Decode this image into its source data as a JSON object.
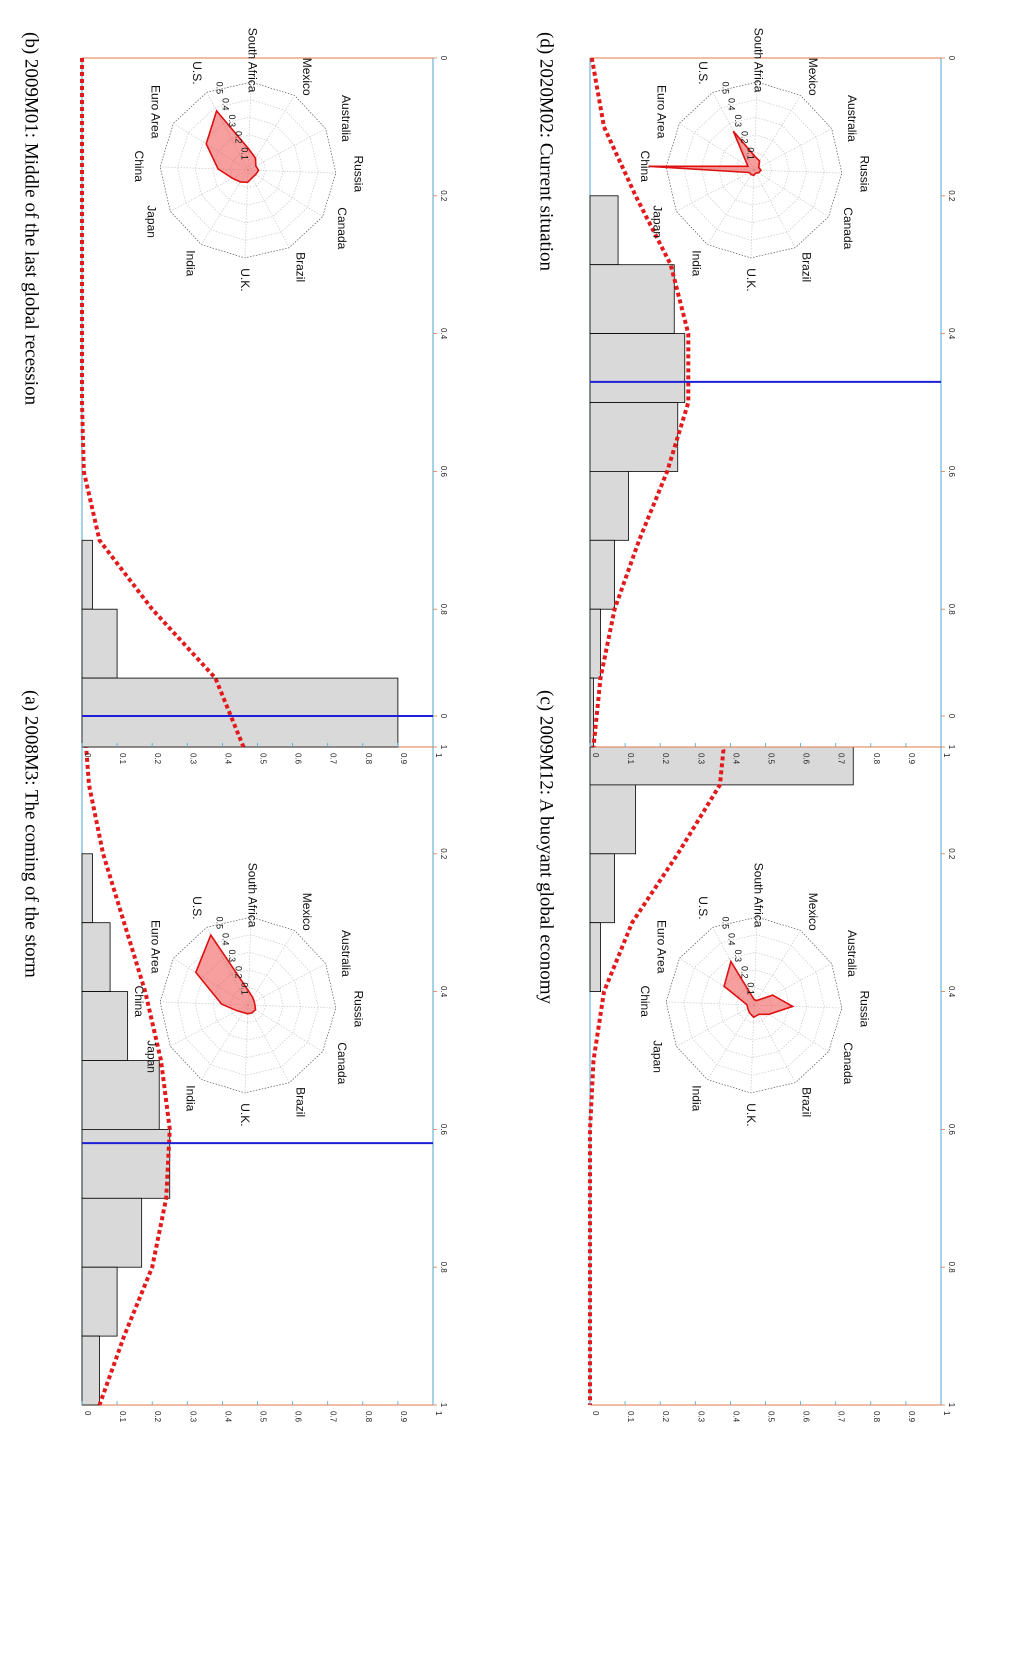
{
  "chart_data": [
    {
      "panel": "a",
      "title": "(a) 2008M3: The coming of the storm",
      "histogram": {
        "type": "bar",
        "xlim": [
          0,
          1
        ],
        "ylim": [
          0,
          1
        ],
        "xticks": [
          "0",
          "0.2",
          "0.4",
          "0.6",
          "0.8",
          "1"
        ],
        "yticks": [
          "0",
          "0.1",
          "0.2",
          "0.3",
          "0.4",
          "0.5",
          "0.6",
          "0.7",
          "0.8",
          "0.9",
          "1"
        ],
        "bins": [
          [
            0.2,
            0.3,
            0.03
          ],
          [
            0.3,
            0.4,
            0.08
          ],
          [
            0.4,
            0.5,
            0.13
          ],
          [
            0.5,
            0.6,
            0.22
          ],
          [
            0.6,
            0.7,
            0.25
          ],
          [
            0.7,
            0.8,
            0.17
          ],
          [
            0.8,
            0.9,
            0.1
          ],
          [
            0.9,
            1.0,
            0.05
          ]
        ],
        "vline": 0.62,
        "density": [
          [
            0,
            0.005
          ],
          [
            0.1,
            0.02
          ],
          [
            0.2,
            0.06
          ],
          [
            0.3,
            0.12
          ],
          [
            0.4,
            0.18
          ],
          [
            0.5,
            0.225
          ],
          [
            0.6,
            0.25
          ],
          [
            0.7,
            0.24
          ],
          [
            0.8,
            0.2
          ],
          [
            0.9,
            0.12
          ],
          [
            1.0,
            0.05
          ]
        ]
      },
      "radar": {
        "type": "radar",
        "axes": [
          "U.S.",
          "South Africa",
          "Mexico",
          "Australia",
          "Russia",
          "Canada",
          "Brazil",
          "U.K.",
          "India",
          "Japan",
          "China",
          "Euro Area"
        ],
        "rings": [
          "0.1",
          "0.2",
          "0.3",
          "0.4",
          "0.5"
        ],
        "values": [
          0.45,
          0.08,
          0.05,
          0.04,
          0.04,
          0.05,
          0.05,
          0.05,
          0.05,
          0.07,
          0.15,
          0.35
        ]
      }
    },
    {
      "panel": "b",
      "title": "(b) 2009M01: Middle of the last global recession",
      "histogram": {
        "type": "bar",
        "xlim": [
          0,
          1
        ],
        "ylim": [
          0,
          1
        ],
        "xticks": [
          "0",
          "0.2",
          "0.4",
          "0.6",
          "0.8",
          "1"
        ],
        "yticks": [
          "0",
          "0.1",
          "0.2",
          "0.3",
          "0.4",
          "0.5",
          "0.6",
          "0.7",
          "0.8",
          "0.9",
          "1"
        ],
        "bins": [
          [
            0.7,
            0.8,
            0.03
          ],
          [
            0.8,
            0.9,
            0.1
          ],
          [
            0.9,
            1.0,
            0.9
          ]
        ],
        "vline": 0.955,
        "density": [
          [
            0,
            0
          ],
          [
            0.5,
            0
          ],
          [
            0.6,
            0.005
          ],
          [
            0.7,
            0.05
          ],
          [
            0.8,
            0.2
          ],
          [
            0.9,
            0.38
          ],
          [
            1.0,
            0.46
          ]
        ]
      },
      "radar": {
        "type": "radar",
        "axes": [
          "U.S.",
          "South Africa",
          "Mexico",
          "Australia",
          "Russia",
          "Canada",
          "Brazil",
          "U.K.",
          "India",
          "Japan",
          "China",
          "Euro Area"
        ],
        "rings": [
          "0.1",
          "0.2",
          "0.3",
          "0.4",
          "0.5"
        ],
        "values": [
          0.38,
          0.12,
          0.08,
          0.05,
          0.06,
          0.05,
          0.05,
          0.07,
          0.08,
          0.1,
          0.17,
          0.28
        ]
      }
    },
    {
      "panel": "c",
      "title": "(c) 2009M12: A buoyant global economy",
      "histogram": {
        "type": "bar",
        "xlim": [
          0,
          1
        ],
        "ylim": [
          0,
          1
        ],
        "xticks": [
          "0",
          "0.2",
          "0.4",
          "0.6",
          "0.8",
          "1"
        ],
        "yticks": [
          "0",
          "0.1",
          "0.2",
          "0.3",
          "0.4",
          "0.5",
          "0.6",
          "0.7",
          "0.8",
          "0.9",
          "1"
        ],
        "bins": [
          [
            0.0,
            0.1,
            0.75
          ],
          [
            0.1,
            0.2,
            0.13
          ],
          [
            0.2,
            0.3,
            0.07
          ],
          [
            0.3,
            0.4,
            0.03
          ]
        ],
        "vline": 0.04,
        "density": [
          [
            0,
            0.35
          ],
          [
            0.05,
            0.38
          ],
          [
            0.1,
            0.37
          ],
          [
            0.2,
            0.25
          ],
          [
            0.3,
            0.12
          ],
          [
            0.4,
            0.04
          ],
          [
            0.5,
            0.01
          ],
          [
            0.6,
            0.0
          ],
          [
            1.0,
            0.0
          ]
        ]
      },
      "radar": {
        "type": "radar",
        "axes": [
          "U.S.",
          "South Africa",
          "Mexico",
          "Australia",
          "Russia",
          "Canada",
          "Brazil",
          "U.K.",
          "India",
          "Japan",
          "China",
          "Euro Area"
        ],
        "rings": [
          "0.1",
          "0.2",
          "0.3",
          "0.4",
          "0.5"
        ],
        "values": [
          0.28,
          0.03,
          0.03,
          0.12,
          0.22,
          0.1,
          0.06,
          0.07,
          0.05,
          0.04,
          0.04,
          0.2
        ]
      }
    },
    {
      "panel": "d",
      "title": "(d) 2020M02: Current situation",
      "histogram": {
        "type": "bar",
        "xlim": [
          0,
          1
        ],
        "ylim": [
          0,
          1
        ],
        "xticks": [
          "0",
          "0.2",
          "0.4",
          "0.6",
          "0.8",
          "1"
        ],
        "yticks": [
          "0",
          "0.1",
          "0.2",
          "0.3",
          "0.4",
          "0.5",
          "0.6",
          "0.7",
          "0.8",
          "0.9",
          "1"
        ],
        "bins": [
          [
            0.2,
            0.3,
            0.08
          ],
          [
            0.3,
            0.4,
            0.24
          ],
          [
            0.4,
            0.5,
            0.27
          ],
          [
            0.5,
            0.6,
            0.25
          ],
          [
            0.6,
            0.7,
            0.11
          ],
          [
            0.7,
            0.8,
            0.07
          ],
          [
            0.8,
            0.9,
            0.03
          ],
          [
            0.9,
            1.0,
            0.01
          ]
        ],
        "vline": 0.47,
        "density": [
          [
            0,
            0.005
          ],
          [
            0.1,
            0.04
          ],
          [
            0.2,
            0.13
          ],
          [
            0.3,
            0.23
          ],
          [
            0.4,
            0.28
          ],
          [
            0.5,
            0.28
          ],
          [
            0.6,
            0.22
          ],
          [
            0.7,
            0.14
          ],
          [
            0.8,
            0.07
          ],
          [
            0.9,
            0.03
          ],
          [
            1.0,
            0.01
          ]
        ]
      },
      "radar": {
        "type": "radar",
        "axes": [
          "U.S.",
          "South Africa",
          "Mexico",
          "Australia",
          "Russia",
          "Canada",
          "Brazil",
          "U.K.",
          "India",
          "Japan",
          "China",
          "Euro Area"
        ],
        "rings": [
          "0.1",
          "0.2",
          "0.3",
          "0.4",
          "0.5"
        ],
        "values": [
          0.25,
          0.08,
          0.06,
          0.03,
          0.04,
          0.03,
          0.02,
          0.03,
          0.03,
          0.03,
          0.6,
          0.04
        ]
      }
    }
  ]
}
